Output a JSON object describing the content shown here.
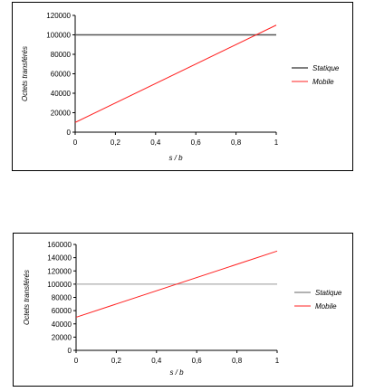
{
  "chart_data": [
    {
      "type": "line",
      "x": [
        0,
        1
      ],
      "series": [
        {
          "name": "Statique",
          "values": [
            100000,
            100000
          ],
          "color": "#555555"
        },
        {
          "name": "Mobile",
          "values": [
            10000,
            110000
          ],
          "color": "#ff2020"
        }
      ],
      "xlabel": "s / b",
      "ylabel": "Octets transférés",
      "xlim": [
        0,
        1
      ],
      "ylim": [
        0,
        120000
      ],
      "xticks": [
        0,
        0.2,
        0.4,
        0.6,
        0.8,
        1
      ],
      "xtick_labels": [
        "0",
        "0,2",
        "0,4",
        "0,6",
        "0,8",
        "1"
      ],
      "yticks": [
        0,
        20000,
        40000,
        60000,
        80000,
        100000,
        120000
      ],
      "ytick_labels": [
        "0",
        "20000",
        "40000",
        "60000",
        "80000",
        "100000",
        "120000"
      ],
      "grid": "horizontal line at 100000",
      "legend_position": "right"
    },
    {
      "type": "line",
      "x": [
        0,
        1
      ],
      "series": [
        {
          "name": "Statique",
          "values": [
            100000,
            100000
          ],
          "color": "#999999"
        },
        {
          "name": "Mobile",
          "values": [
            50000,
            150000
          ],
          "color": "#ff2020"
        }
      ],
      "xlabel": "s / b",
      "ylabel": "Octets transférés",
      "xlim": [
        0,
        1
      ],
      "ylim": [
        0,
        160000
      ],
      "xticks": [
        0,
        0.2,
        0.4,
        0.6,
        0.8,
        1
      ],
      "xtick_labels": [
        "0",
        "0,2",
        "0,4",
        "0,6",
        "0,8",
        "1"
      ],
      "yticks": [
        0,
        20000,
        40000,
        60000,
        80000,
        100000,
        120000,
        140000,
        160000
      ],
      "ytick_labels": [
        "0",
        "20000",
        "40000",
        "60000",
        "80000",
        "100000",
        "120000",
        "140000",
        "160000"
      ],
      "legend_position": "right"
    }
  ]
}
